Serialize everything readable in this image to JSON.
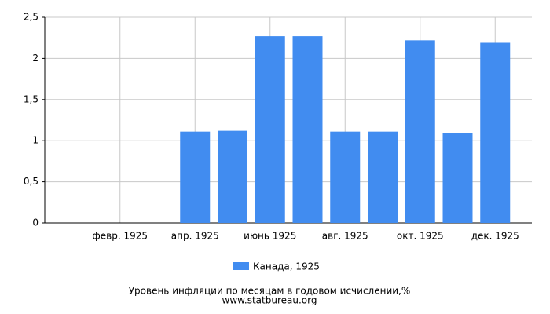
{
  "chart_data": {
    "type": "bar",
    "title": "Уровень инфляции по месяцам в годовом исчислении,%",
    "subtitle": "www.statbureau.org",
    "categories": [
      null,
      "февр. 1925",
      null,
      "апр. 1925",
      null,
      "июнь 1925",
      null,
      "авг. 1925",
      null,
      "окт. 1925",
      null,
      "дек. 1925"
    ],
    "series": [
      {
        "name": "Канада, 1925",
        "color": "#418cf0",
        "values": [
          null,
          null,
          null,
          1.11,
          1.12,
          2.27,
          2.27,
          1.11,
          1.11,
          2.22,
          1.09,
          2.19
        ]
      }
    ],
    "ylim": [
      0,
      2.5
    ],
    "yticks": [
      0,
      {
        "value": 0.5,
        "label": "0,5"
      },
      1,
      {
        "value": 1.5,
        "label": "1,5"
      },
      2,
      {
        "value": 2.5,
        "label": "2,5"
      }
    ],
    "grid": true,
    "legend": "bottom"
  }
}
